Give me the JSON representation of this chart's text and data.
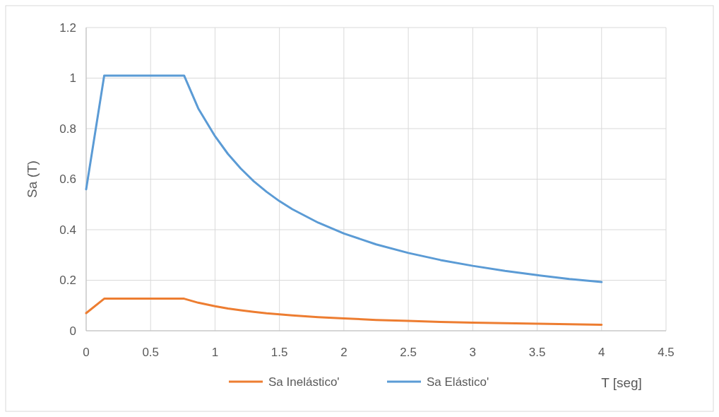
{
  "chart_data": {
    "type": "line",
    "xlabel": "T [seg]",
    "ylabel": "Sa (T)",
    "x": [
      0,
      0.14,
      0.76,
      0.87,
      1.0,
      1.1,
      1.2,
      1.3,
      1.4,
      1.5,
      1.6,
      1.8,
      2.0,
      2.25,
      2.5,
      2.75,
      3.0,
      3.25,
      3.5,
      3.75,
      4.0
    ],
    "series": [
      {
        "name": "Sa Inelástico'",
        "color": "#ed7d31",
        "values": [
          0.07,
          0.127,
          0.127,
          0.111,
          0.097,
          0.088,
          0.081,
          0.075,
          0.069,
          0.065,
          0.061,
          0.054,
          0.049,
          0.043,
          0.039,
          0.035,
          0.032,
          0.03,
          0.028,
          0.026,
          0.024
        ]
      },
      {
        "name": "Sa Elástico'",
        "color": "#5b9bd5",
        "values": [
          0.56,
          1.01,
          1.01,
          0.88,
          0.77,
          0.7,
          0.642,
          0.592,
          0.55,
          0.513,
          0.481,
          0.428,
          0.385,
          0.342,
          0.308,
          0.28,
          0.257,
          0.237,
          0.22,
          0.205,
          0.193
        ]
      }
    ],
    "xlim": [
      0,
      4.5
    ],
    "xticks": [
      0,
      0.5,
      1,
      1.5,
      2,
      2.5,
      3,
      3.5,
      4,
      4.5
    ],
    "ylim": [
      0,
      1.2
    ],
    "yticks": [
      0,
      0.2,
      0.4,
      0.6,
      0.8,
      1,
      1.2
    ],
    "grid": true,
    "legend": "bottom",
    "marker": "none",
    "line_style": "solid"
  }
}
